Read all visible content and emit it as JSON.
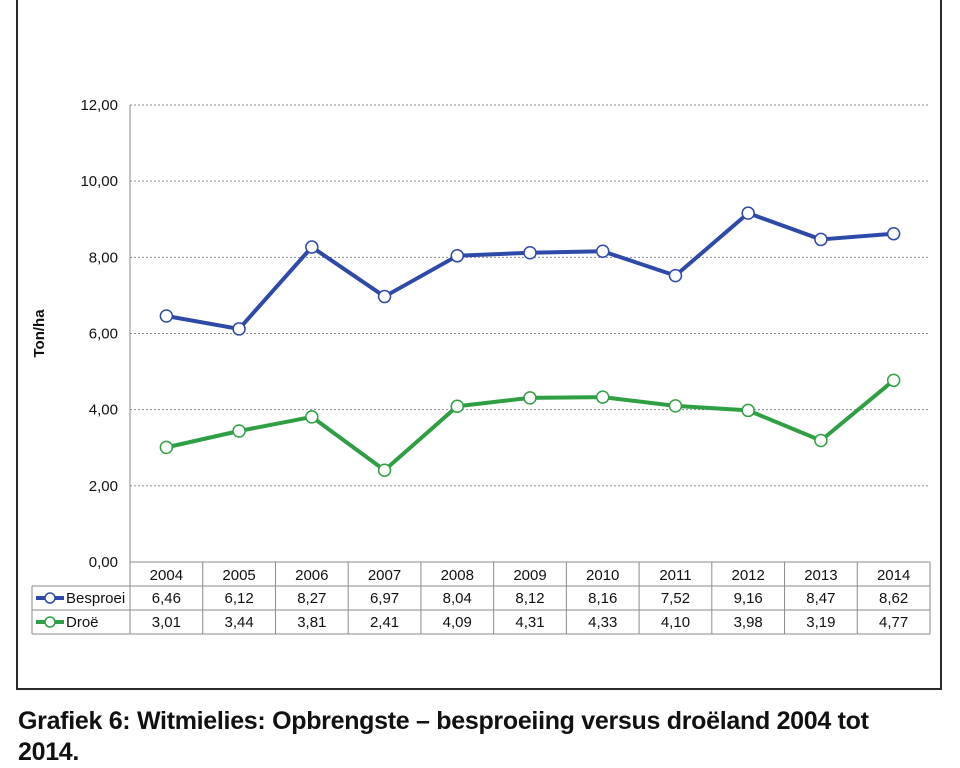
{
  "caption": "Grafiek 6: Witmielies: Opbrengste – besproeiing versus droëland 2004 tot 2014.",
  "chart_data": {
    "type": "line",
    "ylabel": "Ton/ha",
    "xlabel": "",
    "ylim": [
      0,
      12
    ],
    "yticks": [
      "0,00",
      "2,00",
      "4,00",
      "6,00",
      "8,00",
      "10,00",
      "12,00"
    ],
    "ytick_values": [
      0,
      2,
      4,
      6,
      8,
      10,
      12
    ],
    "grid": true,
    "legend": "data-table",
    "categories": [
      "2004",
      "2005",
      "2006",
      "2007",
      "2008",
      "2009",
      "2010",
      "2011",
      "2012",
      "2013",
      "2014"
    ],
    "series": [
      {
        "name": "Besproei",
        "color": "#2e4aa8",
        "values": [
          6.46,
          6.12,
          8.27,
          6.97,
          8.04,
          8.12,
          8.16,
          7.52,
          9.16,
          8.47,
          8.62
        ],
        "labels": [
          "6,46",
          "6,12",
          "8,27",
          "6,97",
          "8,04",
          "8,12",
          "8,16",
          "7,52",
          "9,16",
          "8,47",
          "8,62"
        ]
      },
      {
        "name": "Droë",
        "color": "#2ea043",
        "values": [
          3.01,
          3.44,
          3.81,
          2.41,
          4.09,
          4.31,
          4.33,
          4.1,
          3.98,
          3.19,
          4.77
        ],
        "labels": [
          "3,01",
          "3,44",
          "3,81",
          "2,41",
          "4,09",
          "4,31",
          "4,33",
          "4,10",
          "3,98",
          "3,19",
          "4,77"
        ]
      }
    ]
  }
}
